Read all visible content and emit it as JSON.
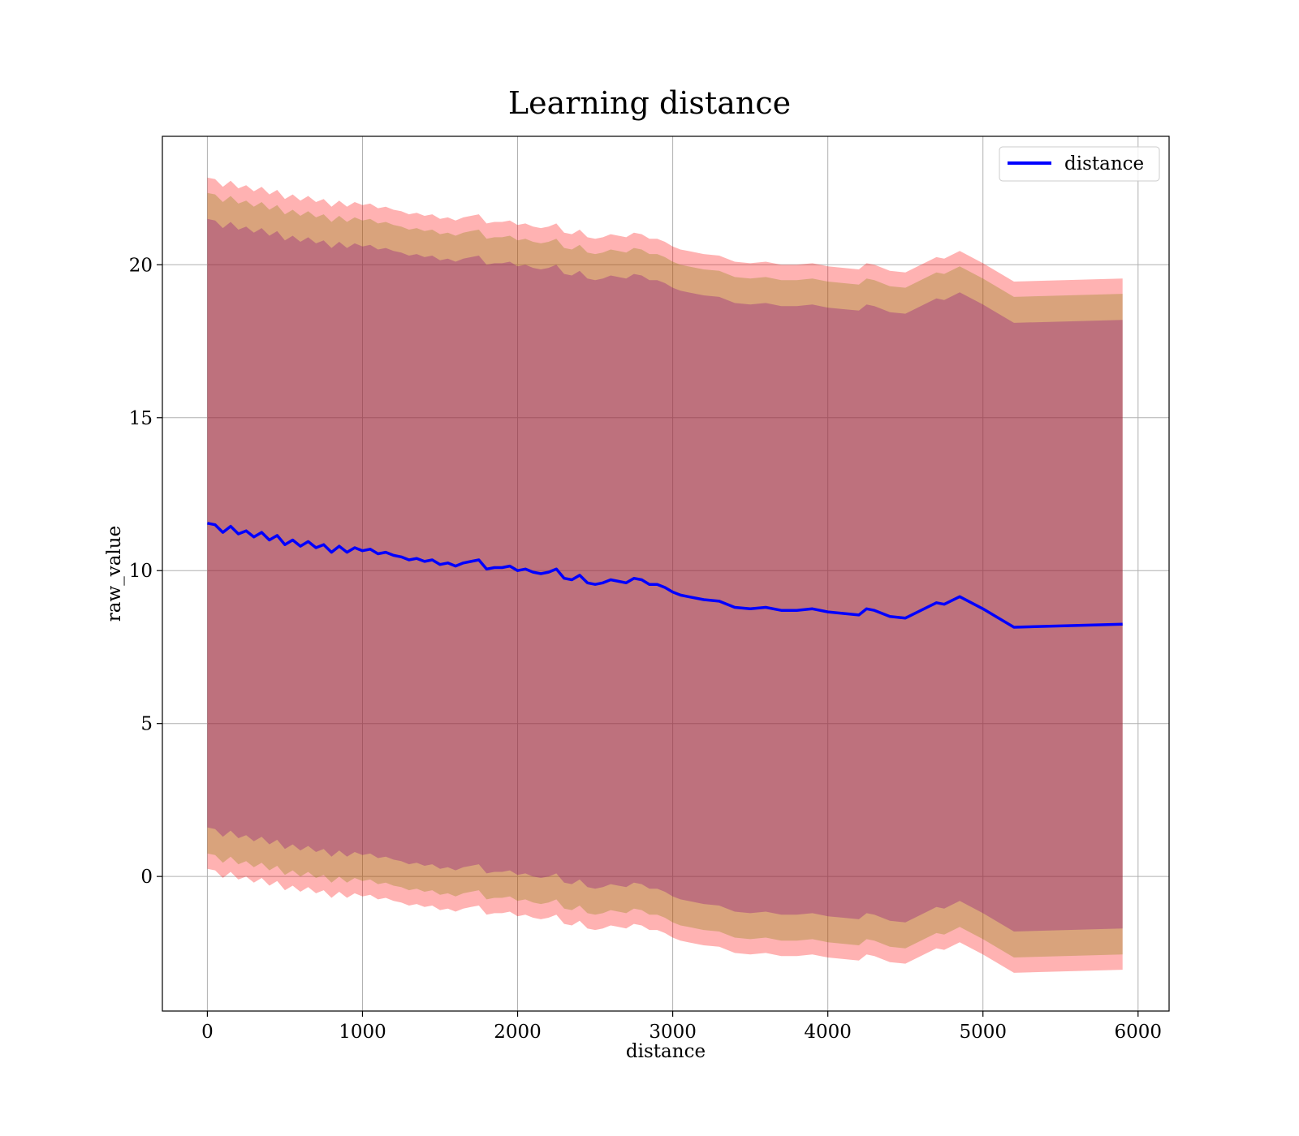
{
  "chart_data": {
    "type": "line",
    "title": "Learning distance",
    "xlabel": "distance",
    "ylabel": "raw_value",
    "xlim": [
      -290,
      6200
    ],
    "ylim": [
      -4.4,
      24.2
    ],
    "xticks": [
      0,
      1000,
      2000,
      3000,
      4000,
      5000,
      6000
    ],
    "yticks": [
      0,
      5,
      10,
      15,
      20
    ],
    "grid": true,
    "legend": {
      "position": "top-right",
      "entries": [
        {
          "label": "distance",
          "color": "#0000ff"
        }
      ]
    },
    "x": [
      0,
      50,
      100,
      150,
      200,
      250,
      300,
      350,
      400,
      450,
      500,
      550,
      600,
      650,
      700,
      750,
      800,
      850,
      900,
      950,
      1000,
      1050,
      1100,
      1150,
      1200,
      1250,
      1300,
      1350,
      1400,
      1450,
      1500,
      1550,
      1600,
      1650,
      1700,
      1750,
      1800,
      1850,
      1900,
      1950,
      2000,
      2050,
      2100,
      2150,
      2200,
      2250,
      2300,
      2350,
      2400,
      2450,
      2500,
      2550,
      2600,
      2650,
      2700,
      2750,
      2800,
      2850,
      2900,
      2950,
      3000,
      3050,
      3100,
      3200,
      3300,
      3400,
      3500,
      3600,
      3700,
      3800,
      3900,
      4000,
      4100,
      4200,
      4250,
      4300,
      4400,
      4500,
      4700,
      4750,
      4850,
      5000,
      5200,
      5900
    ],
    "series": [
      {
        "name": "distance",
        "color": "#0000ff",
        "values": [
          11.55,
          11.5,
          11.25,
          11.45,
          11.2,
          11.3,
          11.1,
          11.25,
          11.0,
          11.15,
          10.85,
          11.0,
          10.8,
          10.95,
          10.75,
          10.85,
          10.6,
          10.8,
          10.6,
          10.75,
          10.65,
          10.7,
          10.55,
          10.6,
          10.5,
          10.45,
          10.35,
          10.4,
          10.3,
          10.35,
          10.2,
          10.25,
          10.15,
          10.25,
          10.3,
          10.35,
          10.05,
          10.1,
          10.1,
          10.15,
          10.0,
          10.05,
          9.95,
          9.9,
          9.95,
          10.05,
          9.75,
          9.7,
          9.85,
          9.6,
          9.55,
          9.6,
          9.7,
          9.65,
          9.6,
          9.75,
          9.7,
          9.55,
          9.55,
          9.45,
          9.3,
          9.2,
          9.15,
          9.05,
          9.0,
          8.8,
          8.75,
          8.8,
          8.7,
          8.7,
          8.75,
          8.65,
          8.6,
          8.55,
          8.75,
          8.7,
          8.5,
          8.45,
          8.95,
          8.9,
          9.15,
          8.75,
          8.15,
          8.25
        ]
      }
    ],
    "bands": [
      {
        "name": "band-outer",
        "color": "#ff0000",
        "opacity": 0.3,
        "offset": 11.3
      },
      {
        "name": "band-middle",
        "color": "#808000",
        "opacity": 0.3,
        "offset": 10.8
      },
      {
        "name": "band-inner",
        "color": "#800080",
        "opacity": 0.3,
        "offset": 9.95
      }
    ]
  }
}
